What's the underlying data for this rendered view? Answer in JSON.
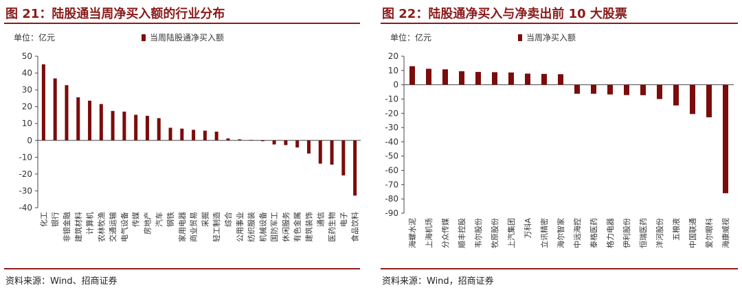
{
  "charts": [
    {
      "figure_title": "图 21：陆股通当周净买入额的行业分布",
      "unit": "单位：亿元",
      "legend": "当周陆股通净买入额",
      "source": "资料来源：Wind、招商证券",
      "bar_color": "#7B0C0C",
      "title_color": "#8B1A1A"
    },
    {
      "figure_title": "图 22：陆股通净买入与净卖出前 10 大股票",
      "unit": "单位：亿元",
      "legend": "当周净买入额",
      "source": "资料来源：Wind，招商证券",
      "bar_color": "#7B0C0C",
      "title_color": "#8B1A1A"
    }
  ],
  "chart_data": [
    {
      "type": "bar",
      "title": "图 21：陆股通当周净买入额的行业分布",
      "ylabel": "单位：亿元",
      "ylim": [
        -40,
        50
      ],
      "yticks": [
        50,
        40,
        30,
        20,
        10,
        0,
        -10,
        -20,
        -30,
        -40
      ],
      "grid": false,
      "legend_position": "top",
      "categories": [
        "化工",
        "银行",
        "非银金融",
        "建筑材料",
        "计算机",
        "农林牧渔",
        "交通运输",
        "电气设备",
        "传媒",
        "房地产",
        "汽车",
        "钢铁",
        "家用电器",
        "商业贸易",
        "采掘",
        "轻工制造",
        "综合",
        "公用事业",
        "纺织服装",
        "机械设备",
        "国防军工",
        "休闲服务",
        "有色金属",
        "建筑装饰",
        "通信",
        "医药生物",
        "电子",
        "食品饮料"
      ],
      "series": [
        {
          "name": "当周陆股通净买入额",
          "values": [
            45.2,
            36.8,
            32.8,
            25.6,
            23.6,
            21.6,
            17.5,
            17.1,
            15.2,
            14.6,
            13.2,
            7.5,
            7.0,
            6.3,
            5.8,
            5.2,
            1.2,
            0.6,
            0.3,
            -0.5,
            -2.4,
            -2.8,
            -4.2,
            -7.8,
            -13.8,
            -14.4,
            -20.8,
            -32.8
          ]
        }
      ]
    },
    {
      "type": "bar",
      "title": "图 22：陆股通净买入与净卖出前 10 大股票",
      "ylabel": "单位：亿元",
      "ylim": [
        -90,
        20
      ],
      "yticks": [
        20,
        10,
        0,
        -10,
        -20,
        -30,
        -40,
        -50,
        -60,
        -70,
        -80,
        -90
      ],
      "grid": false,
      "legend_position": "top",
      "categories": [
        "海螺水泥",
        "上海机场",
        "分众传媒",
        "顺丰控股",
        "韦尔股份",
        "牧原股份",
        "上汽集团",
        "万科A",
        "立讯精密",
        "海尔智家",
        "中远海控",
        "泰格医药",
        "格力电器",
        "伊利股份",
        "恒瑞医药",
        "洋河股份",
        "五粮液",
        "中国联通",
        "爱尔眼科",
        "海康威视"
      ],
      "series": [
        {
          "name": "当周净买入额",
          "values": [
            13.0,
            11.2,
            10.8,
            9.5,
            9.0,
            8.8,
            8.6,
            7.8,
            7.6,
            7.4,
            -6.3,
            -6.3,
            -6.8,
            -7.2,
            -7.3,
            -10.0,
            -14.5,
            -20.5,
            -22.8,
            -76.0
          ]
        }
      ]
    }
  ]
}
